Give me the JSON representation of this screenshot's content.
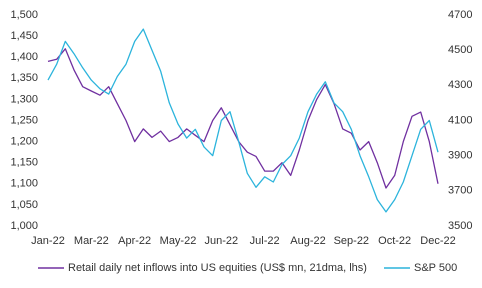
{
  "chart_data": {
    "type": "line",
    "categories": [
      "Jan-22",
      null,
      null,
      null,
      null,
      "Mar-22",
      null,
      null,
      null,
      null,
      "Apr-22",
      null,
      null,
      null,
      null,
      "May-22",
      null,
      null,
      null,
      null,
      "Jun-22",
      null,
      null,
      null,
      null,
      "Jul-22",
      null,
      null,
      null,
      null,
      "Aug-22",
      null,
      null,
      null,
      null,
      "Sep-22",
      null,
      null,
      null,
      null,
      "Oct-22",
      null,
      null,
      null,
      null,
      "Dec-22"
    ],
    "series": [
      {
        "name": "Retail daily net inflows into US equities (US$ mn, 21dma, lhs)",
        "color": "#7030a0",
        "values": [
          1390,
          1395,
          1420,
          1370,
          1330,
          1320,
          1310,
          1330,
          1290,
          1250,
          1200,
          1230,
          1210,
          1225,
          1200,
          1210,
          1230,
          1215,
          1200,
          1250,
          1280,
          1240,
          1200,
          1175,
          1165,
          1130,
          1130,
          1150,
          1120,
          1180,
          1250,
          1300,
          1335,
          1290,
          1230,
          1220,
          1180,
          1200,
          1150,
          1090,
          1120,
          1200,
          1260,
          1270,
          1200,
          1100
        ]
      },
      {
        "name": "S&P 500",
        "color": "#2cb4dc",
        "axis": "y2",
        "values": [
          4330,
          4420,
          4550,
          4480,
          4400,
          4330,
          4280,
          4250,
          4350,
          4420,
          4550,
          4620,
          4500,
          4380,
          4200,
          4080,
          4000,
          4050,
          3950,
          3900,
          4100,
          4150,
          3980,
          3800,
          3720,
          3780,
          3750,
          3850,
          3900,
          4000,
          4150,
          4250,
          4320,
          4200,
          4150,
          4050,
          3900,
          3780,
          3650,
          3580,
          3650,
          3750,
          3900,
          4050,
          4100,
          3920
        ]
      }
    ],
    "ylim": [
      1000,
      1500
    ],
    "yticks": [
      {
        "value": 1000,
        "label": "1,000"
      },
      {
        "value": 1050,
        "label": "1,050"
      },
      {
        "value": 1100,
        "label": "1,100"
      },
      {
        "value": 1150,
        "label": "1,150"
      },
      {
        "value": 1200,
        "label": "1,200"
      },
      {
        "value": 1250,
        "label": "1,250"
      },
      {
        "value": 1300,
        "label": "1,300"
      },
      {
        "value": 1350,
        "label": "1,350"
      },
      {
        "value": 1400,
        "label": "1,400"
      },
      {
        "value": 1450,
        "label": "1,450"
      },
      {
        "value": 1500,
        "label": "1,500"
      }
    ],
    "y2lim": [
      3500,
      4700
    ],
    "y2ticks": [
      3500,
      3700,
      3900,
      4100,
      4300,
      4500,
      4700
    ],
    "legend": "bottom"
  }
}
